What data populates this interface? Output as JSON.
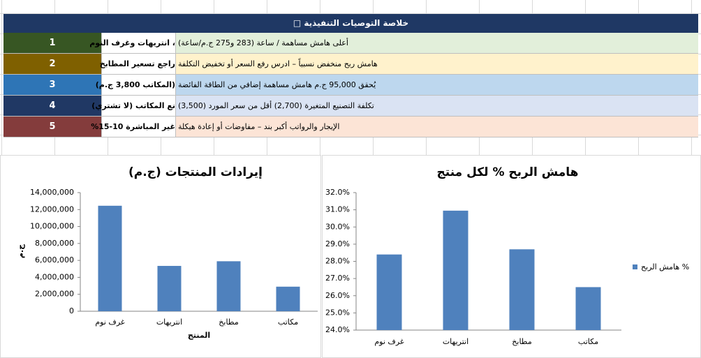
{
  "summary": {
    "title": "خلاصة التوصيات التنفيذية □",
    "rows": [
      {
        "number": 1,
        "action": "، انتريهات وغرف النوم",
        "detail": "أعلى هامش مساهمة / ساعة (283 و275 ج.م/ساعة)",
        "color": "#375623",
        "background": "#e2efda"
      },
      {
        "number": 2,
        "action": "راجع تسعير المطابخ",
        "detail": "هامش ربح منخفض نسبياً – ادرس رفع السعر أو تخفيض التكلفة",
        "color": "#7f6000",
        "background": "#fff2cc"
      },
      {
        "number": 3,
        "action": "(المكاتب 3,800 ج.م)",
        "detail": "يُحقق 95,000 ج.م هامش مساهمة إضافي من الطاقة الفائضة",
        "color": "#2e75b6",
        "background": "#bdd7ee"
      },
      {
        "number": 4,
        "action": "نع المكاتب (لا تشتري)",
        "detail": "تكلفة التصنيع المتغيرة (2,700) أقل من سعر المورد (3,500)",
        "color": "#203864",
        "background": "#dae3f3"
      },
      {
        "number": 5,
        "action": "غير المباشرة 10-15%",
        "detail": "الإيجار والرواتب أكبر بند – مفاوضات أو إعادة هيكلة",
        "color": "#843c3c",
        "background": "#fce4d6"
      }
    ]
  },
  "chart_data": [
    {
      "type": "bar",
      "title": "إيرادات المنتجات (ج.م)",
      "y_label": "ج.م",
      "x_label": "المنتج",
      "categories": [
        "غرف نوم",
        "انتريهات",
        "مطابخ",
        "مكاتب"
      ],
      "values": [
        12450000,
        5350000,
        5900000,
        2900000
      ],
      "color": "#4f81bd",
      "ylim": [
        0,
        14000000
      ],
      "yticks": [
        0,
        {
          "value": 2000000,
          "label": "2,000,000"
        },
        {
          "value": 4000000,
          "label": "4,000,000"
        },
        {
          "value": 6000000,
          "label": "6,000,000"
        },
        {
          "value": 8000000,
          "label": "8,000,000"
        },
        {
          "value": 10000000,
          "label": "10,000,000"
        },
        {
          "value": 12000000,
          "label": "12,000,000"
        },
        {
          "value": 14000000,
          "label": "14,000,000"
        }
      ],
      "grid": false
    },
    {
      "type": "bar",
      "title": "هامش الربح % لكل منتج",
      "categories": [
        "غرف نوم",
        "انتريهات",
        "مطابخ",
        "مكاتب"
      ],
      "series": [
        {
          "name": "هامش الربح %",
          "color": "#4f81bd",
          "values": [
            28.4,
            30.95,
            28.7,
            26.5
          ]
        }
      ],
      "ylim": [
        24,
        32
      ],
      "yticks": [
        {
          "value": 24,
          "label": "24.0%"
        },
        {
          "value": 25,
          "label": "25.0%"
        },
        {
          "value": 26,
          "label": "26.0%"
        },
        {
          "value": 27,
          "label": "27.0%"
        },
        {
          "value": 28,
          "label": "28.0%"
        },
        {
          "value": 29,
          "label": "29.0%"
        },
        {
          "value": 30,
          "label": "30.0%"
        },
        {
          "value": 31,
          "label": "31.0%"
        },
        {
          "value": 32,
          "label": "32.0%"
        }
      ],
      "grid": false,
      "legend": "right"
    }
  ]
}
